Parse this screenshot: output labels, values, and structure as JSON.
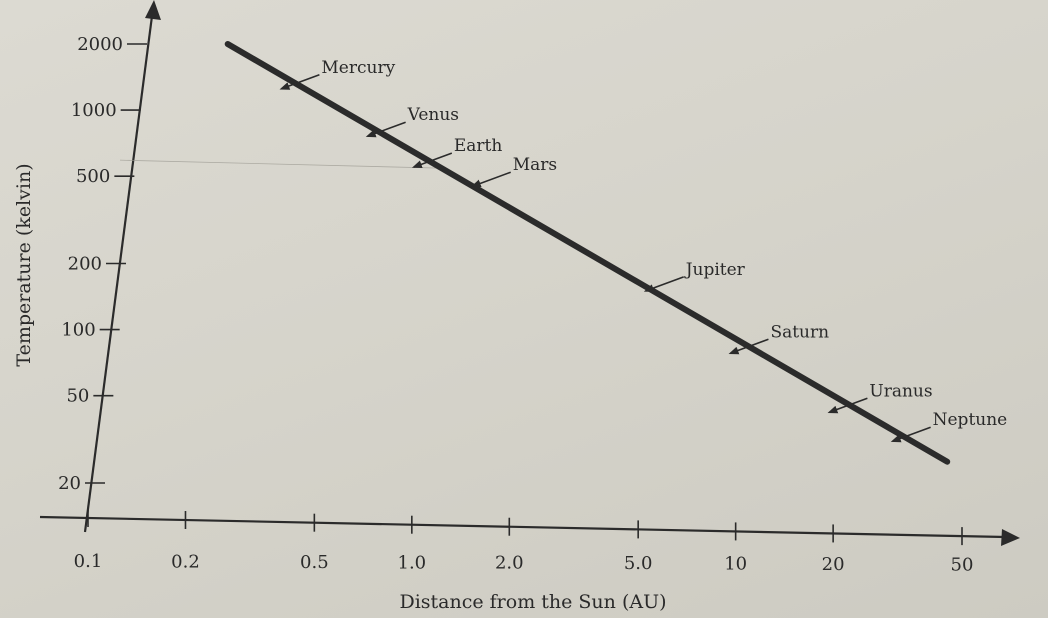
{
  "chart_data": {
    "type": "line",
    "title": "",
    "xlabel": "Distance from the Sun (AU)",
    "ylabel": "Temperature (kelvin)",
    "x_scale": "log",
    "y_scale": "log",
    "xlim": [
      0.1,
      50
    ],
    "ylim": [
      20,
      2000
    ],
    "x_ticks": [
      0.1,
      0.2,
      0.5,
      1.0,
      2.0,
      5.0,
      10,
      20,
      50
    ],
    "x_tick_labels": [
      "0.1",
      "0.2",
      "0.5",
      "1.0",
      "2.0",
      "5.0",
      "10",
      "20",
      "50"
    ],
    "y_ticks": [
      20,
      50,
      100,
      200,
      500,
      1000,
      2000
    ],
    "y_tick_labels": [
      "20",
      "50",
      "100",
      "200",
      "500",
      "1000",
      "2000"
    ],
    "grid": false,
    "series": [
      {
        "x": [
          0.27,
          45
        ],
        "y": [
          2000,
          25
        ]
      }
    ],
    "annotations": [
      {
        "label": "Mercury",
        "x": 0.39,
        "y": 1250
      },
      {
        "label": "Venus",
        "x": 0.72,
        "y": 760
      },
      {
        "label": "Earth",
        "x": 1.0,
        "y": 550
      },
      {
        "label": "Mars",
        "x": 1.52,
        "y": 450
      },
      {
        "label": "Jupiter",
        "x": 5.2,
        "y": 150
      },
      {
        "label": "Saturn",
        "x": 9.5,
        "y": 78
      },
      {
        "label": "Uranus",
        "x": 19.2,
        "y": 42
      },
      {
        "label": "Neptune",
        "x": 30.1,
        "y": 31
      }
    ],
    "colors": {
      "line": "#2b2b2b",
      "axis": "#2b2b2b",
      "text": "#2a2a2a"
    }
  }
}
